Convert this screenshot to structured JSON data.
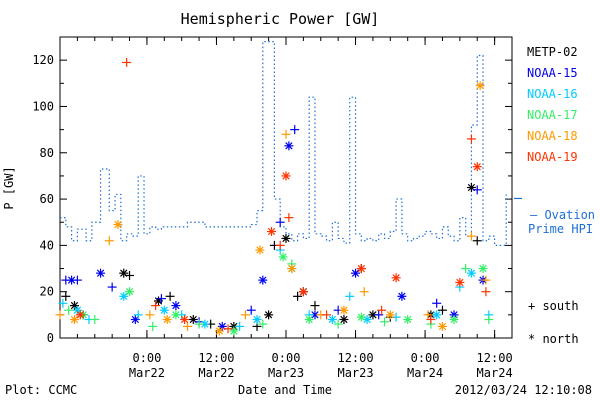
{
  "colors": {
    "METP-02": "#000000",
    "NOAA-15": "#0000ee",
    "NOAA-16": "#00ccff",
    "NOAA-17": "#33ee66",
    "NOAA-18": "#ff9900",
    "NOAA-19": "#ff3300",
    "ovation": "#1f6fd6"
  },
  "footer": {
    "left": "Plot: CCMC",
    "center": "Date and Time",
    "right": "2012/03/24 12:10:08"
  },
  "symbol_legend": {
    "south": "+ south",
    "north": "* north"
  },
  "chart_data": {
    "type": "scatter",
    "title": "Hemispheric Power [GW]",
    "xlabel": "Date and Time",
    "ylabel": "P [GW]",
    "xlim": [
      "2012-03-21 09:00",
      "2012-03-24 15:00"
    ],
    "ylim": [
      0,
      130
    ],
    "x_ticks": [
      {
        "t": "2012-03-22 00:00",
        "time": "0:00",
        "date": "Mar22"
      },
      {
        "t": "2012-03-22 12:00",
        "time": "12:00",
        "date": "Mar22"
      },
      {
        "t": "2012-03-23 00:00",
        "time": "0:00",
        "date": "Mar23"
      },
      {
        "t": "2012-03-23 12:00",
        "time": "12:00",
        "date": "Mar23"
      },
      {
        "t": "2012-03-24 00:00",
        "time": "0:00",
        "date": "Mar24"
      },
      {
        "t": "2012-03-24 12:00",
        "time": "12:00",
        "date": "Mar24"
      }
    ],
    "y_ticks": [
      0,
      20,
      40,
      60,
      80,
      100,
      120
    ],
    "grid": false,
    "legend": [
      "METP-02",
      "NOAA-15",
      "NOAA-16",
      "NOAA-17",
      "NOAA-18",
      "NOAA-19"
    ],
    "ovation_label": [
      "— Ovation",
      "Prime HPI"
    ],
    "ovation_line": {
      "name": "Ovation Prime HPI",
      "style": "dotted",
      "x": [
        "2012-03-21 09:00",
        "2012-03-21 10:00",
        "2012-03-21 11:00",
        "2012-03-21 12:00",
        "2012-03-21 13:30",
        "2012-03-21 14:30",
        "2012-03-21 16:00",
        "2012-03-21 17:30",
        "2012-03-21 18:30",
        "2012-03-21 19:30",
        "2012-03-21 20:30",
        "2012-03-21 21:30",
        "2012-03-21 22:30",
        "2012-03-21 23:30",
        "2012-03-22 00:30",
        "2012-03-22 01:30",
        "2012-03-22 02:30",
        "2012-03-22 03:30",
        "2012-03-22 04:30",
        "2012-03-22 05:30",
        "2012-03-22 07:00",
        "2012-03-22 08:00",
        "2012-03-22 10:00",
        "2012-03-22 12:00",
        "2012-03-22 14:00",
        "2012-03-22 16:00",
        "2012-03-22 18:00",
        "2012-03-22 19:00",
        "2012-03-22 20:00",
        "2012-03-22 21:00",
        "2012-03-22 22:00",
        "2012-03-22 23:00",
        "2012-03-23 00:00",
        "2012-03-23 01:00",
        "2012-03-23 02:00",
        "2012-03-23 03:00",
        "2012-03-23 04:00",
        "2012-03-23 05:00",
        "2012-03-23 06:00",
        "2012-03-23 07:00",
        "2012-03-23 08:00",
        "2012-03-23 09:00",
        "2012-03-23 10:00",
        "2012-03-23 11:00",
        "2012-03-23 12:00",
        "2012-03-23 13:00",
        "2012-03-23 14:00",
        "2012-03-23 15:00",
        "2012-03-23 16:00",
        "2012-03-23 17:00",
        "2012-03-23 18:00",
        "2012-03-23 19:00",
        "2012-03-23 20:00",
        "2012-03-23 21:00",
        "2012-03-23 22:00",
        "2012-03-23 23:00",
        "2012-03-24 00:00",
        "2012-03-24 01:00",
        "2012-03-24 02:00",
        "2012-03-24 03:00",
        "2012-03-24 04:00",
        "2012-03-24 05:00",
        "2012-03-24 06:00",
        "2012-03-24 07:00",
        "2012-03-24 08:00",
        "2012-03-24 09:00",
        "2012-03-24 10:00",
        "2012-03-24 11:00",
        "2012-03-24 12:00",
        "2012-03-24 13:00",
        "2012-03-24 14:00"
      ],
      "y": [
        52,
        48,
        42,
        47,
        42,
        50,
        73,
        55,
        62,
        42,
        45,
        44,
        70,
        45,
        48,
        47,
        48,
        48,
        48,
        48,
        50,
        50,
        48,
        48,
        48,
        48,
        49,
        55,
        128,
        128,
        60,
        48,
        45,
        42,
        45,
        43,
        104,
        45,
        44,
        42,
        50,
        43,
        41,
        104,
        45,
        42,
        43,
        42,
        45,
        43,
        46,
        60,
        45,
        42,
        43,
        44,
        46,
        45,
        43,
        48,
        44,
        42,
        52,
        44,
        92,
        122,
        42,
        44,
        40,
        40,
        62
      ]
    },
    "series": [
      {
        "name": "METP-02",
        "marker": "mixed",
        "x": [
          "2012-03-21 10:00",
          "2012-03-21 11:30",
          "2012-03-21 13:00",
          "2012-03-21 20:00",
          "2012-03-21 21:00",
          "2012-03-22 02:00",
          "2012-03-22 04:00",
          "2012-03-22 08:00",
          "2012-03-22 11:00",
          "2012-03-22 15:00",
          "2012-03-22 19:00",
          "2012-03-22 21:00",
          "2012-03-22 22:00",
          "2012-03-23 00:00",
          "2012-03-23 02:00",
          "2012-03-23 03:00",
          "2012-03-23 05:00",
          "2012-03-23 10:00",
          "2012-03-23 13:00",
          "2012-03-23 15:00",
          "2012-03-23 18:00",
          "2012-03-24 01:00",
          "2012-03-24 03:00",
          "2012-03-24 08:00",
          "2012-03-24 09:00"
        ],
        "y": [
          18,
          14,
          10,
          28,
          27,
          16,
          18,
          8,
          6,
          5,
          5,
          10,
          40,
          43,
          18,
          20,
          14,
          8,
          30,
          10,
          9,
          10,
          12,
          65,
          42
        ]
      },
      {
        "name": "NOAA-15",
        "marker": "mixed",
        "x": [
          "2012-03-21 10:00",
          "2012-03-21 11:00",
          "2012-03-21 12:00",
          "2012-03-21 16:00",
          "2012-03-21 18:00",
          "2012-03-21 22:00",
          "2012-03-22 02:30",
          "2012-03-22 05:00",
          "2012-03-22 09:00",
          "2012-03-22 13:00",
          "2012-03-22 18:00",
          "2012-03-22 20:00",
          "2012-03-22 23:00",
          "2012-03-23 00:30",
          "2012-03-23 01:30",
          "2012-03-23 05:00",
          "2012-03-23 09:00",
          "2012-03-23 12:00",
          "2012-03-23 16:00",
          "2012-03-23 20:00",
          "2012-03-24 02:00",
          "2012-03-24 05:00",
          "2012-03-24 09:00",
          "2012-03-24 10:00"
        ],
        "y": [
          25,
          25,
          25,
          28,
          22,
          8,
          17,
          14,
          7,
          5,
          12,
          25,
          50,
          83,
          90,
          10,
          12,
          28,
          10,
          18,
          15,
          10,
          64,
          25
        ]
      },
      {
        "name": "NOAA-16",
        "marker": "mixed",
        "x": [
          "2012-03-21 09:30",
          "2012-03-21 12:00",
          "2012-03-21 14:00",
          "2012-03-21 20:00",
          "2012-03-21 22:30",
          "2012-03-22 03:00",
          "2012-03-22 06:00",
          "2012-03-22 10:00",
          "2012-03-22 16:00",
          "2012-03-22 19:00",
          "2012-03-22 23:00",
          "2012-03-23 01:00",
          "2012-03-23 04:00",
          "2012-03-23 08:00",
          "2012-03-23 11:00",
          "2012-03-23 14:00",
          "2012-03-23 19:00",
          "2012-03-24 02:00",
          "2012-03-24 06:00",
          "2012-03-24 08:00",
          "2012-03-24 11:00"
        ],
        "y": [
          15,
          12,
          8,
          18,
          10,
          12,
          10,
          6,
          5,
          8,
          38,
          30,
          10,
          8,
          18,
          8,
          9,
          10,
          22,
          28,
          10
        ]
      },
      {
        "name": "NOAA-17",
        "marker": "mixed",
        "x": [
          "2012-03-21 10:30",
          "2012-03-21 13:00",
          "2012-03-21 15:00",
          "2012-03-21 21:00",
          "2012-03-22 01:00",
          "2012-03-22 05:00",
          "2012-03-22 09:00",
          "2012-03-22 15:00",
          "2012-03-22 20:00",
          "2012-03-22 23:30",
          "2012-03-23 01:00",
          "2012-03-23 04:00",
          "2012-03-23 09:00",
          "2012-03-23 13:00",
          "2012-03-23 17:00",
          "2012-03-23 21:00",
          "2012-03-24 01:00",
          "2012-03-24 05:00",
          "2012-03-24 07:00",
          "2012-03-24 10:00",
          "2012-03-24 11:00"
        ],
        "y": [
          12,
          10,
          8,
          20,
          5,
          10,
          6,
          3,
          6,
          35,
          32,
          8,
          6,
          9,
          7,
          8,
          6,
          8,
          30,
          30,
          8
        ]
      },
      {
        "name": "NOAA-18",
        "marker": "mixed",
        "x": [
          "2012-03-21 09:00",
          "2012-03-21 11:30",
          "2012-03-21 17:30",
          "2012-03-21 19:00",
          "2012-03-22 00:30",
          "2012-03-22 03:30",
          "2012-03-22 07:00",
          "2012-03-22 12:30",
          "2012-03-22 17:00",
          "2012-03-22 19:30",
          "2012-03-23 00:00",
          "2012-03-23 01:00",
          "2012-03-23 06:00",
          "2012-03-23 10:00",
          "2012-03-23 13:30",
          "2012-03-23 18:00",
          "2012-03-24 00:30",
          "2012-03-24 03:00",
          "2012-03-24 08:00",
          "2012-03-24 09:30",
          "2012-03-24 10:30"
        ],
        "y": [
          10,
          8,
          42,
          49,
          10,
          8,
          5,
          3,
          10,
          38,
          88,
          30,
          10,
          12,
          20,
          10,
          10,
          5,
          44,
          109,
          25
        ]
      },
      {
        "name": "NOAA-19",
        "marker": "mixed",
        "x": [
          "2012-03-21 20:30",
          "2012-03-21 12:30",
          "2012-03-22 01:30",
          "2012-03-22 06:30",
          "2012-03-22 14:00",
          "2012-03-22 21:30",
          "2012-03-22 23:00",
          "2012-03-23 00:00",
          "2012-03-23 00:30",
          "2012-03-23 03:00",
          "2012-03-23 07:00",
          "2012-03-23 13:00",
          "2012-03-23 16:30",
          "2012-03-23 19:00",
          "2012-03-24 01:00",
          "2012-03-24 06:00",
          "2012-03-24 08:00",
          "2012-03-24 09:00",
          "2012-03-24 10:30"
        ],
        "y": [
          119,
          10,
          14,
          8,
          4,
          46,
          40,
          70,
          52,
          20,
          10,
          30,
          12,
          26,
          8,
          24,
          86,
          74,
          20
        ]
      }
    ]
  }
}
